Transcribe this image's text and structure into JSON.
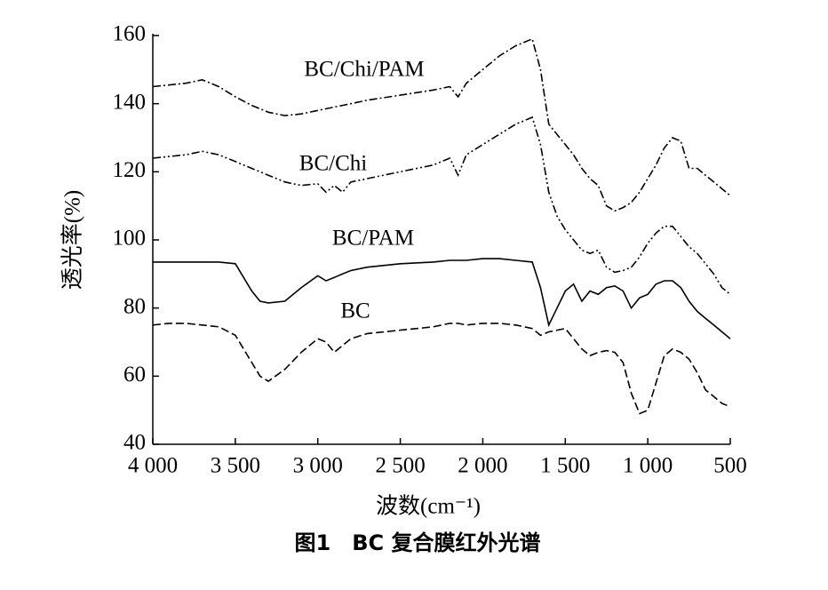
{
  "chart_data": {
    "type": "line",
    "caption": "图1　BC 复合膜红外光谱",
    "x_label": "波数(cm⁻¹)",
    "y_label": "透光率(%)",
    "xlim": [
      4000,
      500
    ],
    "ylim": [
      40,
      160
    ],
    "xticks": [
      {
        "value": 4000,
        "label": "4 000"
      },
      {
        "value": 3500,
        "label": "3 500"
      },
      {
        "value": 3000,
        "label": "3 000"
      },
      {
        "value": 2500,
        "label": "2 500"
      },
      {
        "value": 2000,
        "label": "2 000"
      },
      {
        "value": 1500,
        "label": "1 500"
      },
      {
        "value": 1000,
        "label": "1 000"
      },
      500
    ],
    "yticks": [
      40,
      60,
      80,
      100,
      120,
      140,
      160
    ],
    "x": [
      4000,
      3900,
      3800,
      3700,
      3600,
      3500,
      3400,
      3350,
      3300,
      3200,
      3100,
      3000,
      2950,
      2900,
      2850,
      2800,
      2700,
      2500,
      2300,
      2200,
      2150,
      2100,
      2000,
      1900,
      1800,
      1700,
      1650,
      1600,
      1550,
      1500,
      1450,
      1400,
      1350,
      1300,
      1250,
      1200,
      1150,
      1100,
      1050,
      1000,
      950,
      900,
      850,
      800,
      750,
      700,
      650,
      600,
      550,
      500
    ],
    "series": [
      {
        "name": "BC",
        "color": "#000000",
        "dash": "dashed",
        "values": [
          75,
          75.5,
          75.5,
          75,
          74.5,
          72,
          64,
          60,
          58.5,
          62,
          67,
          71,
          70,
          67,
          69,
          71,
          72.5,
          73.5,
          74.5,
          75.5,
          75.5,
          75,
          75.5,
          75.5,
          75,
          74,
          72,
          73,
          73.5,
          74,
          71,
          68,
          66,
          67,
          67.5,
          67,
          64,
          55,
          49,
          50,
          58,
          66,
          68,
          67,
          65,
          61,
          56,
          54,
          52,
          51
        ]
      },
      {
        "name": "BC/PAM",
        "color": "#000000",
        "dash": "solid",
        "values": [
          93.5,
          93.5,
          93.5,
          93.5,
          93.5,
          93,
          85,
          82,
          81.5,
          82,
          86,
          89.5,
          88,
          89,
          90,
          91,
          92,
          93,
          93.5,
          94,
          94,
          94,
          94.5,
          94.5,
          94,
          93.5,
          86,
          75,
          80,
          85,
          87,
          82,
          85,
          84,
          86,
          86.5,
          85,
          80,
          83,
          84,
          87,
          88,
          88,
          86,
          82,
          79,
          77,
          75,
          73,
          71
        ]
      },
      {
        "name": "BC/Chi",
        "color": "#000000",
        "dash": "dash-dot-dot",
        "values": [
          124,
          124.5,
          125,
          126,
          125,
          123,
          121,
          120,
          119,
          117,
          116,
          116.5,
          114,
          116,
          114,
          117,
          118,
          120,
          122,
          124,
          119,
          125,
          128,
          131,
          134,
          136,
          128,
          114,
          107,
          103,
          100,
          97,
          96,
          97,
          92,
          90.5,
          91,
          92,
          95,
          99,
          102,
          104,
          104,
          101,
          98,
          96,
          93,
          90,
          86,
          84
        ]
      },
      {
        "name": "BC/Chi/PAM",
        "color": "#000000",
        "dash": "dash-dot",
        "values": [
          145,
          145.5,
          146,
          147,
          145,
          142,
          139.5,
          138.5,
          137.5,
          136.5,
          137,
          138,
          138.5,
          139,
          139.5,
          140,
          141,
          142.5,
          144,
          145,
          142,
          146,
          150,
          154,
          157,
          159,
          150,
          134,
          131,
          128,
          125,
          121,
          118,
          116,
          110,
          108.5,
          109.5,
          111,
          114,
          118,
          122,
          127,
          130,
          129,
          121,
          121,
          119,
          117,
          115,
          113
        ]
      }
    ]
  }
}
